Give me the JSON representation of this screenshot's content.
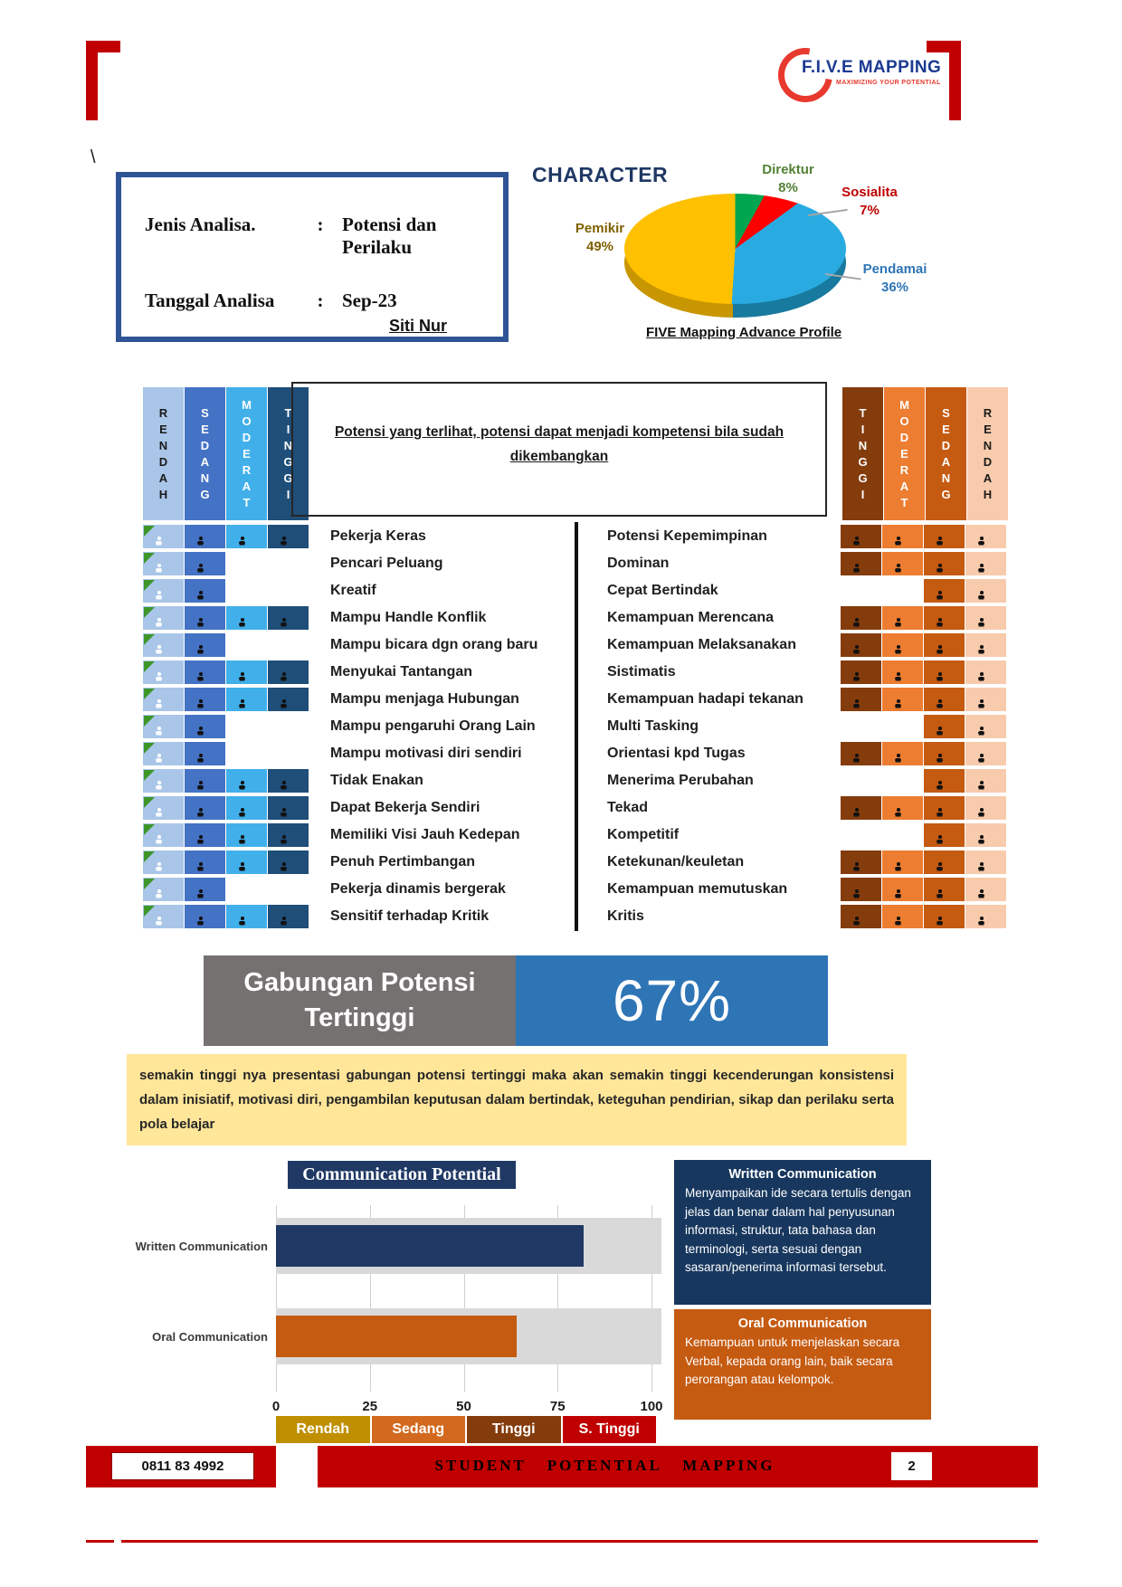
{
  "logo": {
    "brand": "F.I.V.E MAPPING",
    "tagline": "MAXIMIZING YOUR POTENTIAL"
  },
  "stray_char": "\\",
  "info_box": {
    "rows": [
      {
        "label": "Jenis Analisa.",
        "sep": ":",
        "value": "Potensi dan Perilaku"
      },
      {
        "label": "Tanggal Analisa",
        "sep": ":",
        "value": "Sep-23"
      }
    ]
  },
  "character": {
    "title": "CHARACTER"
  },
  "profile": {
    "name": "Siti Nur",
    "advance_title": "FIVE Mapping Advance Profile",
    "description": "Potensi yang terlihat, potensi dapat menjadi kompetensi bila sudah dikembangkan",
    "left_scale": [
      "RENDAH",
      "SEDANG",
      "MODERAT",
      "TINGGI"
    ],
    "right_scale": [
      "TINGGI",
      "MODERAT",
      "SEDANG",
      "RENDAH"
    ],
    "left_colors": [
      {
        "bg": "#a9c6e8",
        "fg": "#1a1a1a",
        "icon": "#ffffff"
      },
      {
        "bg": "#4472c4",
        "fg": "#ffffff",
        "icon": "#111111"
      },
      {
        "bg": "#41b0ea",
        "fg": "#ffffff",
        "icon": "#111111"
      },
      {
        "bg": "#1f4e79",
        "fg": "#ffffff",
        "icon": "#111111"
      }
    ],
    "right_colors": [
      {
        "bg": "#843c0c",
        "fg": "#ffffff",
        "icon": "#111111"
      },
      {
        "bg": "#ed7d31",
        "fg": "#ffffff",
        "icon": "#111111"
      },
      {
        "bg": "#c55a11",
        "fg": "#ffffff",
        "icon": "#111111"
      },
      {
        "bg": "#f8cbad",
        "fg": "#1a1a1a",
        "icon": "#111111"
      }
    ],
    "marker_color": "#3e9629",
    "rows": [
      {
        "left_label": "Pekerja Keras",
        "left_cells": [
          1,
          1,
          1,
          1
        ],
        "right_label": "Potensi Kepemimpinan",
        "right_cells": [
          1,
          1,
          1,
          1
        ]
      },
      {
        "left_label": "Pencari Peluang",
        "left_cells": [
          1,
          1,
          0,
          0
        ],
        "right_label": "Dominan",
        "right_cells": [
          1,
          1,
          1,
          1
        ]
      },
      {
        "left_label": "Kreatif",
        "left_cells": [
          1,
          1,
          0,
          0
        ],
        "right_label": "Cepat Bertindak",
        "right_cells": [
          0,
          0,
          1,
          1
        ]
      },
      {
        "left_label": "Mampu Handle Konflik",
        "left_cells": [
          1,
          1,
          1,
          1
        ],
        "right_label": "Kemampuan Merencana",
        "right_cells": [
          1,
          1,
          1,
          1
        ]
      },
      {
        "left_label": "Mampu bicara dgn orang baru",
        "left_cells": [
          1,
          1,
          0,
          0
        ],
        "right_label": "Kemampuan Melaksanakan",
        "right_cells": [
          1,
          1,
          1,
          1
        ]
      },
      {
        "left_label": "Menyukai Tantangan",
        "left_cells": [
          1,
          1,
          1,
          1
        ],
        "right_label": "Sistimatis",
        "right_cells": [
          1,
          1,
          1,
          1
        ]
      },
      {
        "left_label": "Mampu menjaga Hubungan",
        "left_cells": [
          1,
          1,
          1,
          1
        ],
        "right_label": "Kemampuan hadapi tekanan",
        "right_cells": [
          1,
          1,
          1,
          1
        ]
      },
      {
        "left_label": "Mampu pengaruhi Orang Lain",
        "left_cells": [
          1,
          1,
          0,
          0
        ],
        "right_label": "Multi Tasking",
        "right_cells": [
          0,
          0,
          1,
          1
        ]
      },
      {
        "left_label": "Mampu motivasi diri sendiri",
        "left_cells": [
          1,
          1,
          0,
          0
        ],
        "right_label": "Orientasi kpd Tugas",
        "right_cells": [
          1,
          1,
          1,
          1
        ]
      },
      {
        "left_label": "Tidak Enakan",
        "left_cells": [
          1,
          1,
          1,
          1
        ],
        "right_label": "Menerima Perubahan",
        "right_cells": [
          0,
          0,
          1,
          1
        ]
      },
      {
        "left_label": "Dapat Bekerja Sendiri",
        "left_cells": [
          1,
          1,
          1,
          1
        ],
        "right_label": "Tekad",
        "right_cells": [
          1,
          1,
          1,
          1
        ]
      },
      {
        "left_label": "Memiliki Visi Jauh Kedepan",
        "left_cells": [
          1,
          1,
          1,
          1
        ],
        "right_label": "Kompetitif",
        "right_cells": [
          0,
          0,
          1,
          1
        ]
      },
      {
        "left_label": "Penuh Pertimbangan",
        "left_cells": [
          1,
          1,
          1,
          1
        ],
        "right_label": "Ketekunan/keuletan",
        "right_cells": [
          1,
          1,
          1,
          1
        ]
      },
      {
        "left_label": "Pekerja dinamis bergerak",
        "left_cells": [
          1,
          1,
          0,
          0
        ],
        "right_label": "Kemampuan memutuskan",
        "right_cells": [
          1,
          1,
          1,
          1
        ]
      },
      {
        "left_label": "Sensitif terhadap Kritik",
        "left_cells": [
          1,
          1,
          1,
          1
        ],
        "right_label": "Kritis",
        "right_cells": [
          1,
          1,
          1,
          1
        ]
      }
    ]
  },
  "summary": {
    "label": "Gabungan Potensi Tertinggi",
    "value": "67%",
    "label_bg": "#767171",
    "value_bg": "#2e75b6",
    "note": "semakin tinggi nya presentasi gabungan potensi tertinggi maka akan semakin tinggi kecenderungan konsistensi dalam inisiatif, motivasi diri, pengambilan keputusan dalam bertindak, keteguhan pendirian, sikap dan perilaku serta pola belajar",
    "note_bg": "#ffe699"
  },
  "communication": {
    "title": "Communication Potential",
    "title_bg": "#1f3864",
    "legend": [
      {
        "label": "Rendah",
        "color": "#bf8f00"
      },
      {
        "label": "Sedang",
        "color": "#d2691e"
      },
      {
        "label": "Tinggi",
        "color": "#843c0c"
      },
      {
        "label": "S. Tinggi",
        "color": "#c00000"
      }
    ],
    "panels": [
      {
        "title": "Written  Communication",
        "bg": "#17375e",
        "body": "Menyampaikan ide secara tertulis dengan jelas dan benar dalam hal penyusunan informasi, struktur, tata bahasa dan terminologi, serta sesuai dengan sasaran/penerima informasi tersebut."
      },
      {
        "title": "Oral Communication",
        "bg": "#c55a11",
        "body": "Kemampuan untuk menjelaskan secara Verbal, kepada orang lain, baik secara perorangan atau kelompok."
      }
    ]
  },
  "chart_data": [
    {
      "type": "pie",
      "title": "CHARACTER",
      "labels": [
        "Direktur",
        "Sosialita",
        "Pendamai",
        "Pemikir"
      ],
      "values": [
        8,
        7,
        36,
        49
      ],
      "value_labels": [
        "8%",
        "7%",
        "36%",
        "49%"
      ],
      "slice_colors": [
        "#00a550",
        "#fe0000",
        "#29abe2",
        "#ffc000"
      ],
      "label_colors": [
        "#538135",
        "#c00000",
        "#2e75b6",
        "#7f6000"
      ],
      "style": "3d-pie",
      "legend_position": "callout-labels"
    },
    {
      "type": "bar",
      "orientation": "horizontal",
      "title": "Communication Potential",
      "categories": [
        "Written Communication",
        "Oral Communication"
      ],
      "values": [
        82,
        64
      ],
      "bar_colors": [
        "#1f3864",
        "#c55a11"
      ],
      "track_color": "#d9d9d9",
      "xlim": [
        0,
        100
      ],
      "xticks": [
        0,
        25,
        50,
        75,
        100
      ],
      "grid": true
    }
  ],
  "footer": {
    "phone": "0811 83 4992",
    "title": "STUDENT POTENTIAL MAPPING",
    "page": "2",
    "bar_color": "#c00000",
    "title_color": "#ffe100"
  }
}
